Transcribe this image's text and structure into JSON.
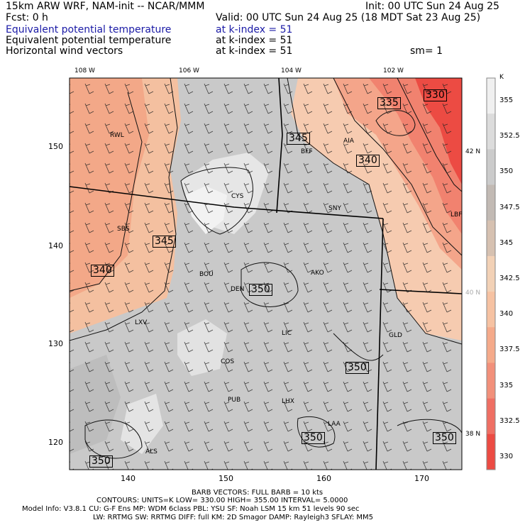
{
  "header": {
    "model": "15km ARW WRF, NAM-init -- NCAR/MMM",
    "init": "Init: 00 UTC Sun 24 Aug 25",
    "fcst": "Fcst:    0 h",
    "valid": "Valid: 00 UTC Sun 24 Aug 25 (18 MDT Sat 23 Aug 25)",
    "line1_field": "Equivalent potential temperature",
    "line1_level": "at k-index =  51",
    "line2_field": "Equivalent potential temperature",
    "line2_level": "at k-index =  51",
    "line3_field": "Horizontal wind vectors",
    "line3_level": "at k-index =  51",
    "smoothing": "sm= 1"
  },
  "map": {
    "top_lon_labels": [
      "108 W",
      "106 W",
      "104 W",
      "102 W"
    ],
    "left_y_ticks": [
      "150",
      "140",
      "130",
      "120"
    ],
    "bottom_x_ticks": [
      "140",
      "150",
      "160",
      "170"
    ],
    "right_lat_labels": [
      "42 N",
      "40 N",
      "38 N"
    ],
    "stations": [
      "RWL",
      "SBS",
      "LXV",
      "CYS",
      "BFF",
      "AIA",
      "SNY",
      "LBF",
      "BOU",
      "DEN",
      "AKO",
      "LIC",
      "GLD",
      "COS",
      "PUB",
      "LHX",
      "LAA",
      "ALS"
    ],
    "contour_labels": [
      "330",
      "335",
      "345",
      "340",
      "345",
      "340",
      "350",
      "350",
      "350",
      "350",
      "350"
    ],
    "colors": {
      "warm": "#f4a183",
      "peach": "#f8cdb0",
      "hot": "#ee4a3c",
      "cool_gray": "#c4c4c4",
      "light_gray": "#e0e0e0"
    }
  },
  "colorbar": {
    "unit": "K",
    "labels": [
      "355",
      "352.5",
      "350",
      "347.5",
      "345",
      "342.5",
      "340",
      "337.5",
      "335",
      "332.5",
      "330"
    ],
    "colors": [
      "#f0f0f0",
      "#dcdcdc",
      "#cbcbcb",
      "#c2bab4",
      "#d6c1b1",
      "#f2d1b6",
      "#f6c2a2",
      "#f5aa8a",
      "#f2907a",
      "#ef6f63",
      "#ec4b43"
    ]
  },
  "footer": {
    "barb": "BARB VECTORS:  FULL BARB = 10 kts",
    "contours": "CONTOURS:  UNITS=K   LOW=  330.00        HIGH=  355.00         INTERVAL=    5.0000",
    "model_info": "Model Info: V3.8.1       CU: G-F Ens  MP: WDM 6class   PBL: YSU          SF: Noah LSM       15 km     51 levels    90 sec",
    "model_info2": "LW: RRTMG    SW: RRTMG   DIFF: full     KM: 2D Smagor  DAMP: Rayleigh3   SFLAY: MM5"
  }
}
